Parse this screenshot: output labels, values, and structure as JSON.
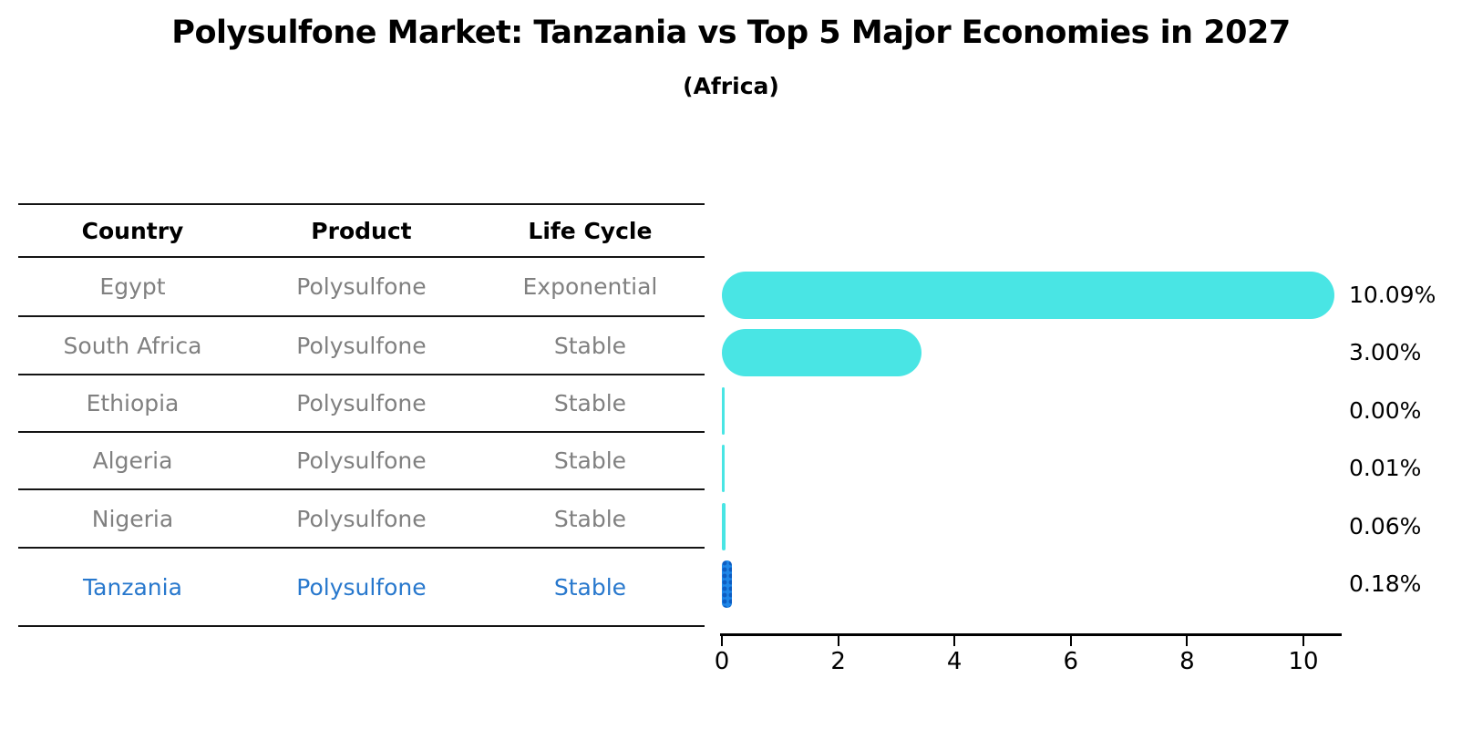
{
  "title": "Polysulfone Market: Tanzania vs Top 5 Major Economies in 2027",
  "subtitle": "(Africa)",
  "table": {
    "headers": [
      "Country",
      "Product",
      "Life Cycle"
    ],
    "rows": [
      {
        "country": "Egypt",
        "product": "Polysulfone",
        "life_cycle": "Exponential",
        "highlighted": false
      },
      {
        "country": "South Africa",
        "product": "Polysulfone",
        "life_cycle": "Stable",
        "highlighted": false
      },
      {
        "country": "Ethiopia",
        "product": "Polysulfone",
        "life_cycle": "Stable",
        "highlighted": false
      },
      {
        "country": "Algeria",
        "product": "Polysulfone",
        "life_cycle": "Stable",
        "highlighted": false
      },
      {
        "country": "Nigeria",
        "product": "Polysulfone",
        "life_cycle": "Stable",
        "highlighted": false
      },
      {
        "country": "Tanzania",
        "product": "Polysulfone",
        "life_cycle": "Stable",
        "highlighted": true
      }
    ]
  },
  "chart_data": {
    "type": "bar",
    "orientation": "horizontal",
    "title": "Polysulfone Market: Tanzania vs Top 5 Major Economies in 2027",
    "subtitle": "(Africa)",
    "categories": [
      "Egypt",
      "South Africa",
      "Ethiopia",
      "Algeria",
      "Nigeria",
      "Tanzania"
    ],
    "values": [
      10.09,
      3.0,
      0.0,
      0.01,
      0.06,
      0.18
    ],
    "value_labels": [
      "10.09%",
      "3.00%",
      "0.00%",
      "0.01%",
      "0.06%",
      "0.18%"
    ],
    "unit": "percent",
    "xlim": [
      0,
      10.7
    ],
    "xticks": [
      0,
      2,
      4,
      6,
      8,
      10
    ],
    "grid": false,
    "legend": "none",
    "highlight_category": "Tanzania",
    "colors": {
      "bar": "#49E5E4",
      "highlight_bar": "#1E87E8",
      "highlight_bar_dots": "#0D5DC2",
      "highlight_text": "#2878CD",
      "row_text": "#808080",
      "header_text": "#000000",
      "axis": "#000000"
    }
  }
}
